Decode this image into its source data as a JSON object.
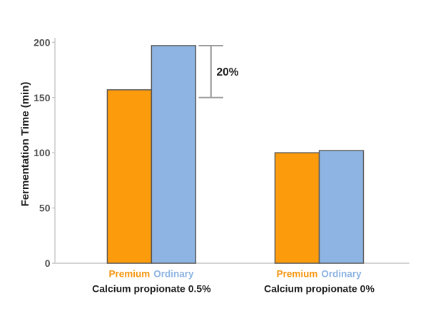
{
  "chart_data": {
    "type": "bar",
    "title": "",
    "xlabel": "",
    "ylabel": "Fermentation Time (min)",
    "ylim": [
      0,
      200
    ],
    "yticks": [
      0,
      50,
      100,
      150,
      200
    ],
    "grid": false,
    "legend_position": "below-bars",
    "categories": [
      "Calcium propionate 0.5%",
      "Calcium propionate 0%"
    ],
    "series": [
      {
        "name": "Premium",
        "values": [
          157,
          100
        ]
      },
      {
        "name": "Ordinary",
        "values": [
          197,
          102
        ]
      }
    ],
    "annotation": {
      "text": "20%",
      "category_index": 0,
      "from_value": 150,
      "to_value": 197
    }
  },
  "colors": {
    "background": "#FFFFFF",
    "premium_fill": "#FC9B0C",
    "ordinary_fill": "#8DB4E2",
    "bar_border": "#555555",
    "axis_line": "#C6C6C6",
    "tick_label": "#4F4F4F",
    "black_text": "#1C1C1C",
    "bracket_line": "#9B9B9B",
    "premium_label": "#F6950E",
    "ordinary_label": "#8DB4E2"
  }
}
